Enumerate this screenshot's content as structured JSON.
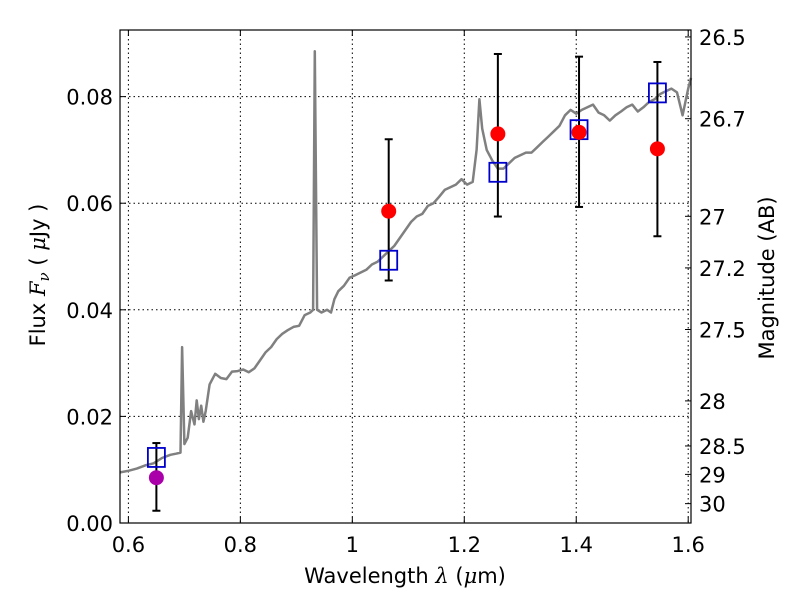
{
  "chart_data": {
    "type": "scatter",
    "xlabel": "Wavelength",
    "xlabel_symbol": "λ",
    "xlabel_unit_open": " (",
    "xlabel_unit_mu": "μ",
    "xlabel_unit_rest": "m)",
    "ylabel": "Flux",
    "ylabel_symbol_main": "F",
    "ylabel_symbol_sub": "ν",
    "ylabel_unit_open": " ( ",
    "ylabel_unit_mu": "μ",
    "ylabel_unit_rest": "Jy )",
    "y2label": "Magnitude (AB)",
    "xlim": [
      0.585,
      1.605
    ],
    "ylim": [
      0.0,
      0.0925
    ],
    "grid": true,
    "x_ticks": [
      {
        "value": 0.6,
        "label": "0.6"
      },
      {
        "value": 0.8,
        "label": "0.8"
      },
      {
        "value": 1.0,
        "label": "1"
      },
      {
        "value": 1.2,
        "label": "1.2"
      },
      {
        "value": 1.4,
        "label": "1.4"
      },
      {
        "value": 1.6,
        "label": "1.6"
      }
    ],
    "y_ticks": [
      {
        "value": 0.0,
        "label": "0.00"
      },
      {
        "value": 0.02,
        "label": "0.02"
      },
      {
        "value": 0.04,
        "label": "0.04"
      },
      {
        "value": 0.06,
        "label": "0.06"
      },
      {
        "value": 0.08,
        "label": "0.08"
      }
    ],
    "mag_ticks": [
      {
        "value": 26.5,
        "label": "26.5"
      },
      {
        "value": 26.7,
        "label": "26.7"
      },
      {
        "value": 27.0,
        "label": "27"
      },
      {
        "value": 27.2,
        "label": "27.2"
      },
      {
        "value": 27.5,
        "label": "27.5"
      },
      {
        "value": 28.0,
        "label": "28"
      },
      {
        "value": 28.5,
        "label": "28.5"
      },
      {
        "value": 29.0,
        "label": "29"
      },
      {
        "value": 30.0,
        "label": "30"
      }
    ],
    "spectrum": {
      "color": "#808080",
      "points": [
        [
          0.585,
          0.0095
        ],
        [
          0.6,
          0.0098
        ],
        [
          0.615,
          0.0102
        ],
        [
          0.63,
          0.0108
        ],
        [
          0.645,
          0.0112
        ],
        [
          0.66,
          0.0122
        ],
        [
          0.675,
          0.0128
        ],
        [
          0.685,
          0.013
        ],
        [
          0.693,
          0.0132
        ],
        [
          0.696,
          0.033
        ],
        [
          0.7,
          0.0148
        ],
        [
          0.706,
          0.016
        ],
        [
          0.712,
          0.021
        ],
        [
          0.718,
          0.0185
        ],
        [
          0.722,
          0.023
        ],
        [
          0.726,
          0.0195
        ],
        [
          0.73,
          0.022
        ],
        [
          0.734,
          0.019
        ],
        [
          0.738,
          0.021
        ],
        [
          0.745,
          0.026
        ],
        [
          0.755,
          0.028
        ],
        [
          0.765,
          0.0272
        ],
        [
          0.775,
          0.027
        ],
        [
          0.785,
          0.0284
        ],
        [
          0.795,
          0.0285
        ],
        [
          0.805,
          0.0288
        ],
        [
          0.815,
          0.0283
        ],
        [
          0.825,
          0.029
        ],
        [
          0.835,
          0.0305
        ],
        [
          0.845,
          0.032
        ],
        [
          0.855,
          0.033
        ],
        [
          0.865,
          0.0345
        ],
        [
          0.875,
          0.0355
        ],
        [
          0.885,
          0.0362
        ],
        [
          0.895,
          0.0368
        ],
        [
          0.905,
          0.037
        ],
        [
          0.915,
          0.039
        ],
        [
          0.925,
          0.0395
        ],
        [
          0.93,
          0.04
        ],
        [
          0.933,
          0.0885
        ],
        [
          0.937,
          0.04
        ],
        [
          0.945,
          0.0395
        ],
        [
          0.955,
          0.04
        ],
        [
          0.962,
          0.0395
        ],
        [
          0.968,
          0.042
        ],
        [
          0.975,
          0.0435
        ],
        [
          0.985,
          0.0445
        ],
        [
          0.995,
          0.046
        ],
        [
          1.005,
          0.0465
        ],
        [
          1.015,
          0.047
        ],
        [
          1.025,
          0.0475
        ],
        [
          1.035,
          0.0485
        ],
        [
          1.045,
          0.049
        ],
        [
          1.055,
          0.05
        ],
        [
          1.065,
          0.051
        ],
        [
          1.075,
          0.052
        ],
        [
          1.085,
          0.0535
        ],
        [
          1.095,
          0.055
        ],
        [
          1.105,
          0.0565
        ],
        [
          1.115,
          0.0575
        ],
        [
          1.125,
          0.058
        ],
        [
          1.135,
          0.0595
        ],
        [
          1.145,
          0.06
        ],
        [
          1.155,
          0.0612
        ],
        [
          1.165,
          0.0625
        ],
        [
          1.175,
          0.063
        ],
        [
          1.185,
          0.0635
        ],
        [
          1.195,
          0.0645
        ],
        [
          1.205,
          0.0635
        ],
        [
          1.215,
          0.064
        ],
        [
          1.222,
          0.07
        ],
        [
          1.227,
          0.0795
        ],
        [
          1.232,
          0.074
        ],
        [
          1.24,
          0.07
        ],
        [
          1.25,
          0.068
        ],
        [
          1.26,
          0.0665
        ],
        [
          1.27,
          0.0665
        ],
        [
          1.28,
          0.0675
        ],
        [
          1.29,
          0.0685
        ],
        [
          1.3,
          0.069
        ],
        [
          1.31,
          0.0695
        ],
        [
          1.32,
          0.0695
        ],
        [
          1.33,
          0.0705
        ],
        [
          1.34,
          0.0715
        ],
        [
          1.35,
          0.0725
        ],
        [
          1.36,
          0.0735
        ],
        [
          1.37,
          0.0745
        ],
        [
          1.38,
          0.0765
        ],
        [
          1.39,
          0.0775
        ],
        [
          1.4,
          0.0768
        ],
        [
          1.41,
          0.0775
        ],
        [
          1.42,
          0.078
        ],
        [
          1.43,
          0.0785
        ],
        [
          1.44,
          0.077
        ],
        [
          1.45,
          0.0765
        ],
        [
          1.46,
          0.0755
        ],
        [
          1.47,
          0.0765
        ],
        [
          1.48,
          0.0772
        ],
        [
          1.49,
          0.078
        ],
        [
          1.5,
          0.0785
        ],
        [
          1.51,
          0.0772
        ],
        [
          1.52,
          0.078
        ],
        [
          1.53,
          0.079
        ],
        [
          1.54,
          0.0795
        ],
        [
          1.55,
          0.0805
        ],
        [
          1.56,
          0.081
        ],
        [
          1.57,
          0.0815
        ],
        [
          1.58,
          0.0808
        ],
        [
          1.59,
          0.0765
        ],
        [
          1.6,
          0.0815
        ],
        [
          1.605,
          0.0835
        ]
      ]
    },
    "observed_points": [
      {
        "x": 0.65,
        "y": 0.0085,
        "yerr_low": 0.0023,
        "yerr_high": 0.015,
        "color": "#aa00aa"
      },
      {
        "x": 1.065,
        "y": 0.0585,
        "yerr_low": 0.0455,
        "yerr_high": 0.072,
        "color": "#ff0000"
      },
      {
        "x": 1.26,
        "y": 0.073,
        "yerr_low": 0.0575,
        "yerr_high": 0.088,
        "color": "#ff0000"
      },
      {
        "x": 1.405,
        "y": 0.0733,
        "yerr_low": 0.0593,
        "yerr_high": 0.0875,
        "color": "#ff0000"
      },
      {
        "x": 1.545,
        "y": 0.0702,
        "yerr_low": 0.0538,
        "yerr_high": 0.0865,
        "color": "#ff0000"
      }
    ],
    "model_points": [
      {
        "x": 0.65,
        "y": 0.0123
      },
      {
        "x": 1.065,
        "y": 0.0493
      },
      {
        "x": 1.26,
        "y": 0.0658
      },
      {
        "x": 1.405,
        "y": 0.0738
      },
      {
        "x": 1.545,
        "y": 0.0807
      }
    ],
    "colors": {
      "errorbar": "#000000",
      "model_marker": "#0000cc",
      "spectrum": "#808080"
    }
  }
}
